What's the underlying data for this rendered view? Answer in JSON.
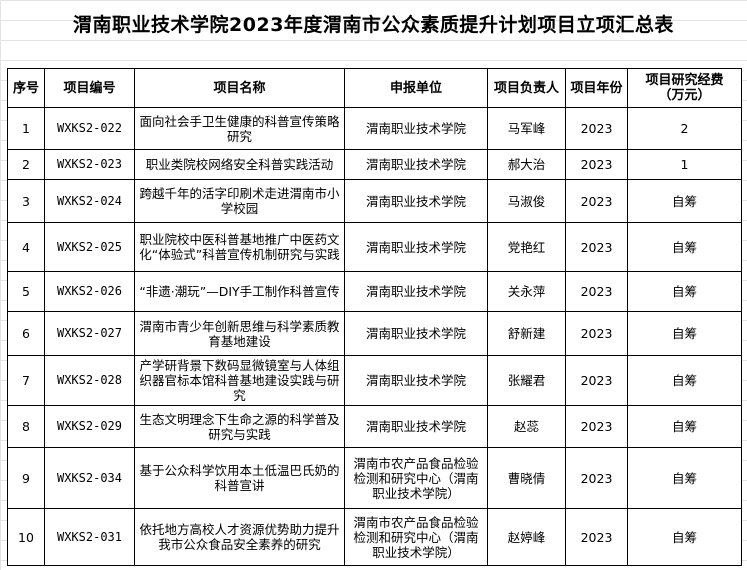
{
  "title": "渭南职业技术学院2023年度渭南市公众素质提升计划项目立项汇总表",
  "headers": [
    "序号",
    "项目编号",
    "项目名称",
    "申报单位",
    "项目负责人",
    "项目年份",
    "项目研究经费（万元）"
  ],
  "rows": [
    {
      "no": "1",
      "code": "WXKS2-022",
      "name": "面向社会手卫生健康的科普宣传策略研究",
      "unit": "渭南职业技术学院",
      "leader": "马军峰",
      "year": "2023",
      "fund": "2"
    },
    {
      "no": "2",
      "code": "WXKS2-023",
      "name": "职业类院校网络安全科普实践活动",
      "unit": "渭南职业技术学院",
      "leader": "郝大治",
      "year": "2023",
      "fund": "1"
    },
    {
      "no": "3",
      "code": "WXKS2-024",
      "name": "跨越千年的活字印刷术走进渭南市小学校园",
      "unit": "渭南职业技术学院",
      "leader": "马淑俊",
      "year": "2023",
      "fund": "自筹"
    },
    {
      "no": "4",
      "code": "WXKS2-025",
      "name": "职业院校中医科普基地推广中医药文化“体验式”科普宣传机制研究与实践",
      "unit": "渭南职业技术学院",
      "leader": "党艳红",
      "year": "2023",
      "fund": "自筹"
    },
    {
      "no": "5",
      "code": "WXKS2-026",
      "name": "“非遗·潮玩”—DIY手工制作科普宣传",
      "unit": "渭南职业技术学院",
      "leader": "关永萍",
      "year": "2023",
      "fund": "自筹"
    },
    {
      "no": "6",
      "code": "WXKS2-027",
      "name": "渭南市青少年创新思维与科学素质教育基地建设",
      "unit": "渭南职业技术学院",
      "leader": "舒新建",
      "year": "2023",
      "fund": "自筹"
    },
    {
      "no": "7",
      "code": "WXKS2-028",
      "name": "产学研背景下数码显微镜室与人体组织器官标本馆科普基地建设实践与研究",
      "unit": "渭南职业技术学院",
      "leader": "张耀君",
      "year": "2023",
      "fund": "自筹"
    },
    {
      "no": "8",
      "code": "WXKS2-029",
      "name": "生态文明理念下生命之源的科学普及研究与实践",
      "unit": "渭南职业技术学院",
      "leader": "赵蕊",
      "year": "2023",
      "fund": "自筹"
    },
    {
      "no": "9",
      "code": "WXKS2-034",
      "name": "基于公众科学饮用本土低温巴氏奶的科普宣讲",
      "unit": "渭南市农产品食品检验检测和研究中心（渭南职业技术学院）",
      "leader": "曹晓倩",
      "year": "2023",
      "fund": "自筹"
    },
    {
      "no": "10",
      "code": "WXKS2-031",
      "name": "依托地方高校人才资源优势助力提升我市公众食品安全素养的研究",
      "unit": "渭南市农产品食品检验检测和研究中心（渭南职业技术学院）",
      "leader": "赵婷峰",
      "year": "2023",
      "fund": "自筹"
    }
  ]
}
